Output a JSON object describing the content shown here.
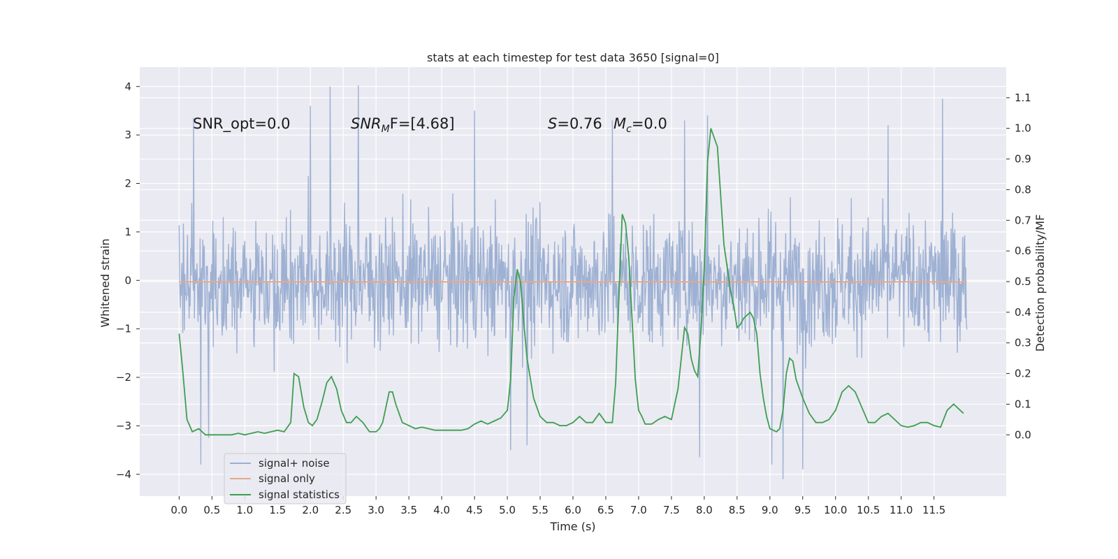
{
  "chart_data": {
    "type": "line",
    "title": "stats at each timestep for test data 3650 [signal=0]",
    "xlabel": "Time (s)",
    "ylabel_left": "Whitened strain",
    "ylabel_right": "Detection probability/MF",
    "xlim": [
      -0.6,
      12.6
    ],
    "ylim_left": [
      -4.45,
      4.4
    ],
    "ylim_right": [
      -0.2,
      1.2
    ],
    "x_ticks": [
      "0.0",
      "0.5",
      "1.0",
      "1.5",
      "2.0",
      "2.5",
      "3.0",
      "3.5",
      "4.0",
      "4.5",
      "5.0",
      "5.5",
      "6.0",
      "6.5",
      "7.0",
      "7.5",
      "8.0",
      "8.5",
      "9.0",
      "9.5",
      "10.0",
      "10.5",
      "11.0",
      "11.5"
    ],
    "y_ticks_left": [
      "4",
      "3",
      "2",
      "1",
      "0",
      "−1",
      "−2",
      "−3",
      "−4"
    ],
    "y_ticks_right": [
      "1.1",
      "1.0",
      "0.9",
      "0.8",
      "0.7",
      "0.6",
      "0.5",
      "0.4",
      "0.3",
      "0.2",
      "0.1",
      "0.0"
    ],
    "grid": true,
    "legend_position": "lower-left",
    "annotations": {
      "snr_opt": "SNR_opt=0.0",
      "snr_mf_main": "SNR",
      "snr_mf_sub": "M",
      "snr_mf_rest": "F=[4.68]",
      "s_label": "S",
      "s_rest": "=0.76",
      "mc_main": "M",
      "mc_sub": "c",
      "mc_rest": "=0.0"
    },
    "series": [
      {
        "name": "signal+ noise",
        "color": "#9aaed1",
        "axis": "left",
        "description_range": [
          -4.1,
          4.0
        ],
        "x_range": [
          0.0,
          12.0
        ],
        "typical_envelope": [
          -2.0,
          2.0
        ],
        "spikes": [
          {
            "x": 0.22,
            "y": 3.35
          },
          {
            "x": 0.45,
            "y": -3.25
          },
          {
            "x": 0.33,
            "y": -3.8
          },
          {
            "x": 2.0,
            "y": 3.6
          },
          {
            "x": 2.3,
            "y": 4.0
          },
          {
            "x": 2.73,
            "y": 4.02
          },
          {
            "x": 4.5,
            "y": 3.5
          },
          {
            "x": 5.05,
            "y": -3.5
          },
          {
            "x": 5.3,
            "y": -3.4
          },
          {
            "x": 6.6,
            "y": 3.3
          },
          {
            "x": 7.7,
            "y": 3.3
          },
          {
            "x": 7.93,
            "y": -3.65
          },
          {
            "x": 8.05,
            "y": 3.4
          },
          {
            "x": 9.03,
            "y": -3.8
          },
          {
            "x": 9.2,
            "y": -4.1
          },
          {
            "x": 9.5,
            "y": -3.9
          },
          {
            "x": 10.8,
            "y": 3.2
          },
          {
            "x": 11.63,
            "y": 3.75
          }
        ]
      },
      {
        "name": "signal only",
        "color": "#e8a88a",
        "axis": "left",
        "x": [
          0.0,
          12.0
        ],
        "y": [
          -0.03,
          -0.03
        ]
      },
      {
        "name": "signal statistics",
        "color": "#3e9e50",
        "axis": "right",
        "x": [
          0.0,
          0.05,
          0.12,
          0.2,
          0.3,
          0.4,
          0.5,
          0.6,
          0.7,
          0.8,
          0.9,
          1.0,
          1.1,
          1.2,
          1.3,
          1.4,
          1.5,
          1.6,
          1.7,
          1.75,
          1.82,
          1.9,
          1.97,
          2.03,
          2.1,
          2.18,
          2.25,
          2.32,
          2.4,
          2.47,
          2.55,
          2.62,
          2.7,
          2.8,
          2.9,
          3.0,
          3.05,
          3.1,
          3.2,
          3.25,
          3.3,
          3.4,
          3.5,
          3.6,
          3.7,
          3.8,
          3.9,
          4.0,
          4.1,
          4.2,
          4.3,
          4.4,
          4.5,
          4.6,
          4.7,
          4.8,
          4.9,
          5.0,
          5.05,
          5.1,
          5.15,
          5.2,
          5.25,
          5.3,
          5.4,
          5.5,
          5.6,
          5.7,
          5.8,
          5.9,
          6.0,
          6.1,
          6.2,
          6.3,
          6.4,
          6.5,
          6.6,
          6.65,
          6.7,
          6.75,
          6.8,
          6.85,
          6.9,
          6.95,
          7.0,
          7.05,
          7.1,
          7.2,
          7.3,
          7.4,
          7.5,
          7.6,
          7.7,
          7.75,
          7.8,
          7.85,
          7.9,
          7.95,
          8.0,
          8.05,
          8.1,
          8.2,
          8.3,
          8.4,
          8.45,
          8.5,
          8.55,
          8.6,
          8.65,
          8.7,
          8.75,
          8.8,
          8.85,
          8.9,
          8.95,
          9.0,
          9.1,
          9.15,
          9.2,
          9.25,
          9.3,
          9.35,
          9.4,
          9.5,
          9.6,
          9.7,
          9.8,
          9.9,
          10.0,
          10.1,
          10.2,
          10.3,
          10.4,
          10.5,
          10.6,
          10.7,
          10.8,
          10.9,
          11.0,
          11.1,
          11.2,
          11.3,
          11.4,
          11.5,
          11.6,
          11.7,
          11.8,
          11.9,
          11.95
        ],
        "y": [
          0.33,
          0.22,
          0.05,
          0.01,
          0.02,
          0.0,
          0.0,
          0.0,
          0.0,
          0.0,
          0.005,
          0.0,
          0.005,
          0.01,
          0.005,
          0.01,
          0.015,
          0.01,
          0.04,
          0.2,
          0.19,
          0.09,
          0.04,
          0.03,
          0.05,
          0.11,
          0.17,
          0.19,
          0.15,
          0.08,
          0.04,
          0.04,
          0.06,
          0.04,
          0.01,
          0.01,
          0.02,
          0.04,
          0.14,
          0.14,
          0.1,
          0.04,
          0.03,
          0.02,
          0.025,
          0.02,
          0.015,
          0.015,
          0.015,
          0.015,
          0.015,
          0.02,
          0.035,
          0.045,
          0.035,
          0.045,
          0.055,
          0.08,
          0.18,
          0.45,
          0.54,
          0.5,
          0.37,
          0.25,
          0.12,
          0.06,
          0.04,
          0.04,
          0.03,
          0.03,
          0.04,
          0.06,
          0.04,
          0.04,
          0.07,
          0.04,
          0.04,
          0.17,
          0.45,
          0.72,
          0.69,
          0.58,
          0.38,
          0.18,
          0.08,
          0.06,
          0.035,
          0.035,
          0.05,
          0.06,
          0.05,
          0.15,
          0.35,
          0.33,
          0.25,
          0.21,
          0.19,
          0.34,
          0.55,
          0.89,
          1.0,
          0.94,
          0.62,
          0.47,
          0.42,
          0.35,
          0.36,
          0.38,
          0.39,
          0.4,
          0.38,
          0.33,
          0.2,
          0.12,
          0.06,
          0.02,
          0.01,
          0.02,
          0.08,
          0.2,
          0.25,
          0.24,
          0.18,
          0.12,
          0.07,
          0.04,
          0.04,
          0.05,
          0.08,
          0.14,
          0.16,
          0.14,
          0.09,
          0.04,
          0.04,
          0.06,
          0.07,
          0.05,
          0.03,
          0.025,
          0.03,
          0.04,
          0.04,
          0.03,
          0.025,
          0.08,
          0.1,
          0.08,
          0.07
        ]
      }
    ]
  }
}
